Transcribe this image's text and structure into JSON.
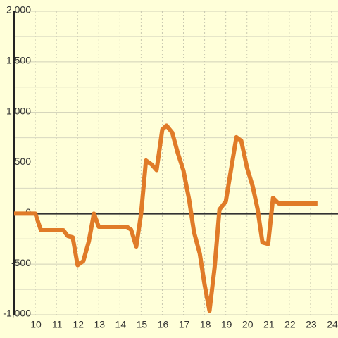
{
  "chart_data": {
    "type": "line",
    "x": [
      9,
      10,
      10.27,
      11.33,
      11.53,
      11.77,
      12,
      12.27,
      12.53,
      12.77,
      13,
      14.33,
      14.53,
      14.77,
      15,
      15.23,
      15.5,
      15.73,
      16,
      16.2,
      16.47,
      16.73,
      17,
      17.27,
      17.5,
      17.77,
      18,
      18.23,
      18.47,
      18.7,
      19,
      19.27,
      19.5,
      19.73,
      20,
      20.27,
      20.5,
      20.73,
      21,
      21.23,
      21.5,
      23.33
    ],
    "series": [
      {
        "color": "#e07b28",
        "values": [
          0,
          0,
          -165,
          -165,
          -220,
          -235,
          -510,
          -470,
          -275,
          0,
          -130,
          -130,
          -160,
          -325,
          0,
          525,
          485,
          430,
          830,
          870,
          800,
          600,
          425,
          135,
          -185,
          -395,
          -705,
          -960,
          -535,
          40,
          120,
          465,
          755,
          720,
          455,
          270,
          45,
          -285,
          -300,
          155,
          100,
          100
        ]
      }
    ],
    "xlim": [
      9,
      24.3
    ],
    "ylim": [
      -1000,
      2000
    ],
    "xticks": [
      10,
      11,
      12,
      13,
      14,
      15,
      16,
      17,
      18,
      19,
      20,
      21,
      22,
      23,
      24
    ],
    "yticks": [
      {
        "value": -1000,
        "label": "-1,000"
      },
      -500,
      0,
      500,
      {
        "value": 1000,
        "label": "1,000"
      },
      {
        "value": 1500,
        "label": "1,500"
      },
      {
        "value": 2000,
        "label": "2,000"
      }
    ],
    "y_minor_ticks": [
      -750,
      -250,
      250,
      750,
      1250,
      1750
    ],
    "grid": true
  }
}
